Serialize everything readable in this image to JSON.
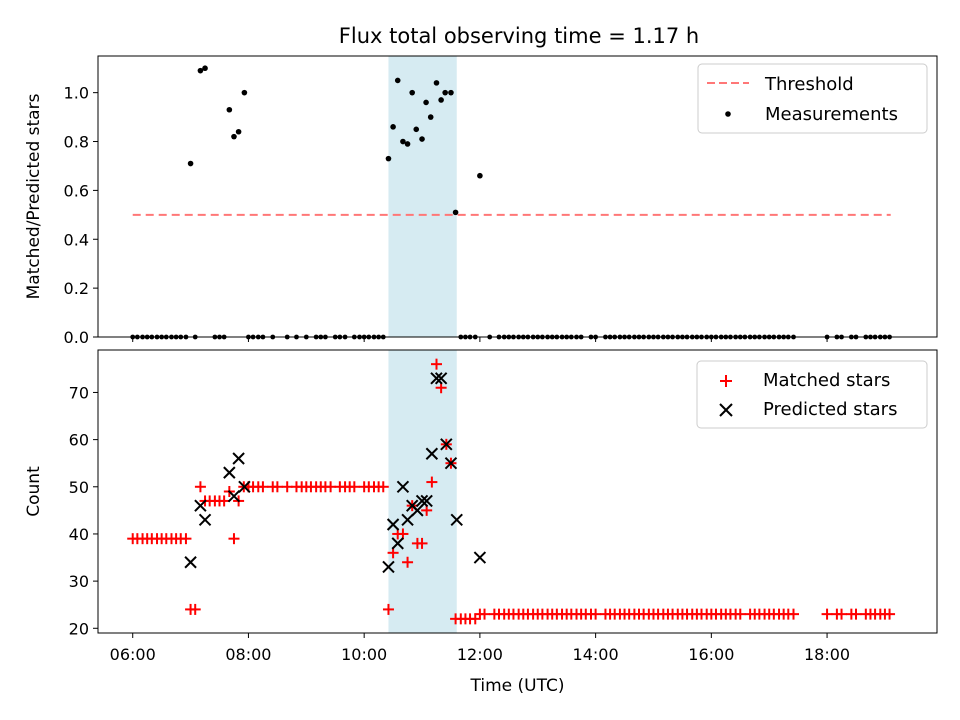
{
  "chart_data": {
    "title": "Flux total observing time = 1.17 h",
    "xlabel": "Time (UTC)",
    "x_unit": "hours UTC",
    "x_ticks": [
      {
        "value": 6,
        "label": "06:00"
      },
      {
        "value": 8,
        "label": "08:00"
      },
      {
        "value": 10,
        "label": "10:00"
      },
      {
        "value": 12,
        "label": "12:00"
      },
      {
        "value": 14,
        "label": "14:00"
      },
      {
        "value": 16,
        "label": "16:00"
      },
      {
        "value": 18,
        "label": "18:00"
      }
    ],
    "xlim": [
      5.4,
      19.9
    ],
    "highlight_span": [
      10.42,
      11.6
    ],
    "colors": {
      "threshold": "#ff7777",
      "measurements": "#000000",
      "matched": "#ff0000",
      "predicted": "#000000",
      "span": "#add8e6"
    },
    "panels": [
      {
        "type": "scatter",
        "ylabel": "Matched/Predicted stars",
        "ylim": [
          0,
          1.15
        ],
        "y_ticks": [
          {
            "value": 0,
            "label": "0.0"
          },
          {
            "value": 0.2,
            "label": "0.2"
          },
          {
            "value": 0.4,
            "label": "0.4"
          },
          {
            "value": 0.6,
            "label": "0.6"
          },
          {
            "value": 0.8,
            "label": "0.8"
          },
          {
            "value": 1.0,
            "label": "1.0"
          }
        ],
        "legend": [
          {
            "label": "Threshold",
            "kind": "dashed-line",
            "color": "#ff7777"
          },
          {
            "label": "Measurements",
            "kind": "dot",
            "color": "#000000"
          }
        ],
        "threshold": {
          "name": "Threshold",
          "y": 0.5,
          "x": [
            6.0,
            19.1
          ]
        },
        "measurements": {
          "name": "Measurements",
          "points": [
            [
              7.0,
              0.71
            ],
            [
              7.17,
              1.09
            ],
            [
              7.25,
              1.1
            ],
            [
              7.67,
              0.93
            ],
            [
              7.75,
              0.82
            ],
            [
              7.83,
              0.84
            ],
            [
              7.93,
              1.0
            ],
            [
              10.42,
              0.73
            ],
            [
              10.5,
              0.86
            ],
            [
              10.58,
              1.05
            ],
            [
              10.67,
              0.8
            ],
            [
              10.75,
              0.79
            ],
            [
              10.83,
              1.0
            ],
            [
              10.9,
              0.85
            ],
            [
              11.0,
              0.81
            ],
            [
              11.07,
              0.96
            ],
            [
              11.15,
              0.9
            ],
            [
              11.25,
              1.04
            ],
            [
              11.33,
              0.97
            ],
            [
              11.4,
              1.0
            ],
            [
              11.5,
              1.0
            ],
            [
              11.58,
              0.51
            ],
            [
              12.0,
              0.66
            ]
          ],
          "zero_x": [
            6.0,
            6.08,
            6.17,
            6.25,
            6.33,
            6.42,
            6.5,
            6.58,
            6.67,
            6.75,
            6.83,
            6.92,
            7.08,
            7.42,
            7.5,
            7.58,
            8.0,
            8.08,
            8.17,
            8.25,
            8.42,
            8.67,
            8.83,
            9.0,
            9.17,
            9.25,
            9.33,
            9.5,
            9.58,
            9.67,
            9.83,
            9.92,
            10.0,
            10.08,
            10.17,
            10.25,
            10.33,
            11.67,
            11.75,
            11.83,
            11.92,
            12.17,
            12.33,
            12.42,
            12.5,
            12.58,
            12.67,
            12.75,
            12.83,
            12.92,
            13.0,
            13.08,
            13.17,
            13.25,
            13.33,
            13.42,
            13.5,
            13.58,
            13.67,
            13.75,
            13.92,
            14.0,
            14.17,
            14.25,
            14.33,
            14.42,
            14.5,
            14.58,
            14.67,
            14.75,
            14.83,
            14.92,
            15.0,
            15.08,
            15.17,
            15.25,
            15.33,
            15.42,
            15.5,
            15.58,
            15.67,
            15.75,
            15.83,
            15.92,
            16.0,
            16.08,
            16.17,
            16.25,
            16.33,
            16.42,
            16.5,
            16.58,
            16.67,
            16.75,
            16.83,
            16.92,
            17.0,
            17.08,
            17.17,
            17.25,
            17.33,
            17.42,
            18.0,
            18.17,
            18.25,
            18.42,
            18.5,
            18.67,
            18.75,
            18.83,
            18.92,
            19.0,
            19.08
          ]
        }
      },
      {
        "type": "scatter",
        "ylabel": "Count",
        "ylim": [
          19,
          79
        ],
        "y_ticks": [
          {
            "value": 20,
            "label": "20"
          },
          {
            "value": 30,
            "label": "30"
          },
          {
            "value": 40,
            "label": "40"
          },
          {
            "value": 50,
            "label": "50"
          },
          {
            "value": 60,
            "label": "60"
          },
          {
            "value": 70,
            "label": "70"
          }
        ],
        "legend": [
          {
            "label": "Matched stars",
            "kind": "plus",
            "color": "#ff0000"
          },
          {
            "label": "Predicted stars",
            "kind": "cross",
            "color": "#000000"
          }
        ],
        "matched": {
          "name": "Matched stars",
          "points": [
            [
              6.0,
              39
            ],
            [
              6.08,
              39
            ],
            [
              6.17,
              39
            ],
            [
              6.25,
              39
            ],
            [
              6.33,
              39
            ],
            [
              6.42,
              39
            ],
            [
              6.5,
              39
            ],
            [
              6.58,
              39
            ],
            [
              6.67,
              39
            ],
            [
              6.75,
              39
            ],
            [
              6.83,
              39
            ],
            [
              6.92,
              39
            ],
            [
              7.0,
              24
            ],
            [
              7.08,
              24
            ],
            [
              7.17,
              50
            ],
            [
              7.25,
              47
            ],
            [
              7.33,
              47
            ],
            [
              7.42,
              47
            ],
            [
              7.5,
              47
            ],
            [
              7.58,
              47
            ],
            [
              7.67,
              49
            ],
            [
              7.75,
              39
            ],
            [
              7.83,
              47
            ],
            [
              7.92,
              50
            ],
            [
              8.0,
              50
            ],
            [
              8.08,
              50
            ],
            [
              8.17,
              50
            ],
            [
              8.25,
              50
            ],
            [
              8.42,
              50
            ],
            [
              8.5,
              50
            ],
            [
              8.67,
              50
            ],
            [
              8.83,
              50
            ],
            [
              8.92,
              50
            ],
            [
              9.0,
              50
            ],
            [
              9.08,
              50
            ],
            [
              9.17,
              50
            ],
            [
              9.25,
              50
            ],
            [
              9.33,
              50
            ],
            [
              9.42,
              50
            ],
            [
              9.58,
              50
            ],
            [
              9.67,
              50
            ],
            [
              9.75,
              50
            ],
            [
              9.83,
              50
            ],
            [
              10.0,
              50
            ],
            [
              10.08,
              50
            ],
            [
              10.17,
              50
            ],
            [
              10.25,
              50
            ],
            [
              10.33,
              50
            ],
            [
              10.42,
              24
            ],
            [
              10.5,
              36
            ],
            [
              10.58,
              40
            ],
            [
              10.67,
              40
            ],
            [
              10.75,
              34
            ],
            [
              10.83,
              46
            ],
            [
              10.92,
              38
            ],
            [
              11.0,
              38
            ],
            [
              11.08,
              45
            ],
            [
              11.17,
              51
            ],
            [
              11.25,
              76
            ],
            [
              11.33,
              71
            ],
            [
              11.42,
              59
            ],
            [
              11.5,
              55
            ],
            [
              11.58,
              22
            ],
            [
              11.67,
              22
            ],
            [
              11.75,
              22
            ],
            [
              11.83,
              22
            ],
            [
              11.92,
              22
            ],
            [
              12.0,
              23
            ],
            [
              12.08,
              23
            ],
            [
              12.25,
              23
            ],
            [
              12.33,
              23
            ],
            [
              12.42,
              23
            ],
            [
              12.5,
              23
            ],
            [
              12.58,
              23
            ],
            [
              12.67,
              23
            ],
            [
              12.75,
              23
            ],
            [
              12.83,
              23
            ],
            [
              12.92,
              23
            ],
            [
              13.0,
              23
            ],
            [
              13.08,
              23
            ],
            [
              13.17,
              23
            ],
            [
              13.25,
              23
            ],
            [
              13.33,
              23
            ],
            [
              13.42,
              23
            ],
            [
              13.5,
              23
            ],
            [
              13.58,
              23
            ],
            [
              13.67,
              23
            ],
            [
              13.75,
              23
            ],
            [
              13.83,
              23
            ],
            [
              13.92,
              23
            ],
            [
              14.0,
              23
            ],
            [
              14.17,
              23
            ],
            [
              14.25,
              23
            ],
            [
              14.33,
              23
            ],
            [
              14.42,
              23
            ],
            [
              14.5,
              23
            ],
            [
              14.58,
              23
            ],
            [
              14.67,
              23
            ],
            [
              14.75,
              23
            ],
            [
              14.83,
              23
            ],
            [
              14.92,
              23
            ],
            [
              15.0,
              23
            ],
            [
              15.08,
              23
            ],
            [
              15.17,
              23
            ],
            [
              15.25,
              23
            ],
            [
              15.33,
              23
            ],
            [
              15.42,
              23
            ],
            [
              15.5,
              23
            ],
            [
              15.58,
              23
            ],
            [
              15.67,
              23
            ],
            [
              15.75,
              23
            ],
            [
              15.83,
              23
            ],
            [
              15.92,
              23
            ],
            [
              16.0,
              23
            ],
            [
              16.08,
              23
            ],
            [
              16.17,
              23
            ],
            [
              16.25,
              23
            ],
            [
              16.33,
              23
            ],
            [
              16.42,
              23
            ],
            [
              16.5,
              23
            ],
            [
              16.67,
              23
            ],
            [
              16.75,
              23
            ],
            [
              16.83,
              23
            ],
            [
              16.92,
              23
            ],
            [
              17.0,
              23
            ],
            [
              17.08,
              23
            ],
            [
              17.17,
              23
            ],
            [
              17.25,
              23
            ],
            [
              17.33,
              23
            ],
            [
              17.42,
              23
            ],
            [
              18.0,
              23
            ],
            [
              18.17,
              23
            ],
            [
              18.25,
              23
            ],
            [
              18.42,
              23
            ],
            [
              18.5,
              23
            ],
            [
              18.67,
              23
            ],
            [
              18.75,
              23
            ],
            [
              18.83,
              23
            ],
            [
              18.92,
              23
            ],
            [
              19.0,
              23
            ],
            [
              19.08,
              23
            ]
          ]
        },
        "predicted": {
          "name": "Predicted stars",
          "points": [
            [
              7.0,
              34
            ],
            [
              7.17,
              46
            ],
            [
              7.25,
              43
            ],
            [
              7.67,
              53
            ],
            [
              7.75,
              48
            ],
            [
              7.83,
              56
            ],
            [
              7.93,
              50
            ],
            [
              10.42,
              33
            ],
            [
              10.5,
              42
            ],
            [
              10.58,
              38
            ],
            [
              10.67,
              50
            ],
            [
              10.75,
              43
            ],
            [
              10.83,
              46
            ],
            [
              10.92,
              45
            ],
            [
              11.0,
              47
            ],
            [
              11.08,
              47
            ],
            [
              11.17,
              57
            ],
            [
              11.25,
              73
            ],
            [
              11.33,
              73
            ],
            [
              11.42,
              59
            ],
            [
              11.5,
              55
            ],
            [
              11.6,
              43
            ],
            [
              12.0,
              35
            ]
          ]
        }
      }
    ]
  }
}
